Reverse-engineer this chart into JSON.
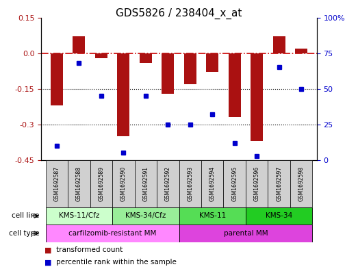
{
  "title": "GDS5826 / 238404_x_at",
  "samples": [
    "GSM1692587",
    "GSM1692588",
    "GSM1692589",
    "GSM1692590",
    "GSM1692591",
    "GSM1692592",
    "GSM1692593",
    "GSM1692594",
    "GSM1692595",
    "GSM1692596",
    "GSM1692597",
    "GSM1692598"
  ],
  "transformed_count": [
    -0.22,
    0.07,
    -0.02,
    -0.35,
    -0.04,
    -0.17,
    -0.13,
    -0.08,
    -0.27,
    -0.37,
    0.07,
    0.02
  ],
  "percentile_rank": [
    10,
    68,
    45,
    5,
    45,
    25,
    25,
    32,
    12,
    3,
    65,
    50
  ],
  "ylim_left": [
    -0.45,
    0.15
  ],
  "ylim_right": [
    0,
    100
  ],
  "yticks_left": [
    0.15,
    0.0,
    -0.15,
    -0.3,
    -0.45
  ],
  "yticks_right": [
    100,
    75,
    50,
    25,
    0
  ],
  "bar_color": "#aa1111",
  "dot_color": "#0000cc",
  "zero_line_color": "#cc0000",
  "grid_line_color": "#000000",
  "sample_box_color": "#d0d0d0",
  "cell_line_colors": [
    "#ccffcc",
    "#99ee99",
    "#55dd55",
    "#22cc22"
  ],
  "cell_lines": [
    {
      "label": "KMS-11/Cfz",
      "start": 0,
      "end": 3
    },
    {
      "label": "KMS-34/Cfz",
      "start": 3,
      "end": 6
    },
    {
      "label": "KMS-11",
      "start": 6,
      "end": 9
    },
    {
      "label": "KMS-34",
      "start": 9,
      "end": 12
    }
  ],
  "cell_type_colors": [
    "#ff88ff",
    "#dd44dd"
  ],
  "cell_types": [
    {
      "label": "carfilzomib-resistant MM",
      "start": 0,
      "end": 6
    },
    {
      "label": "parental MM",
      "start": 6,
      "end": 12
    }
  ],
  "legend_items": [
    {
      "label": "transformed count",
      "color": "#aa1111"
    },
    {
      "label": "percentile rank within the sample",
      "color": "#0000cc"
    }
  ],
  "bar_width": 0.55
}
